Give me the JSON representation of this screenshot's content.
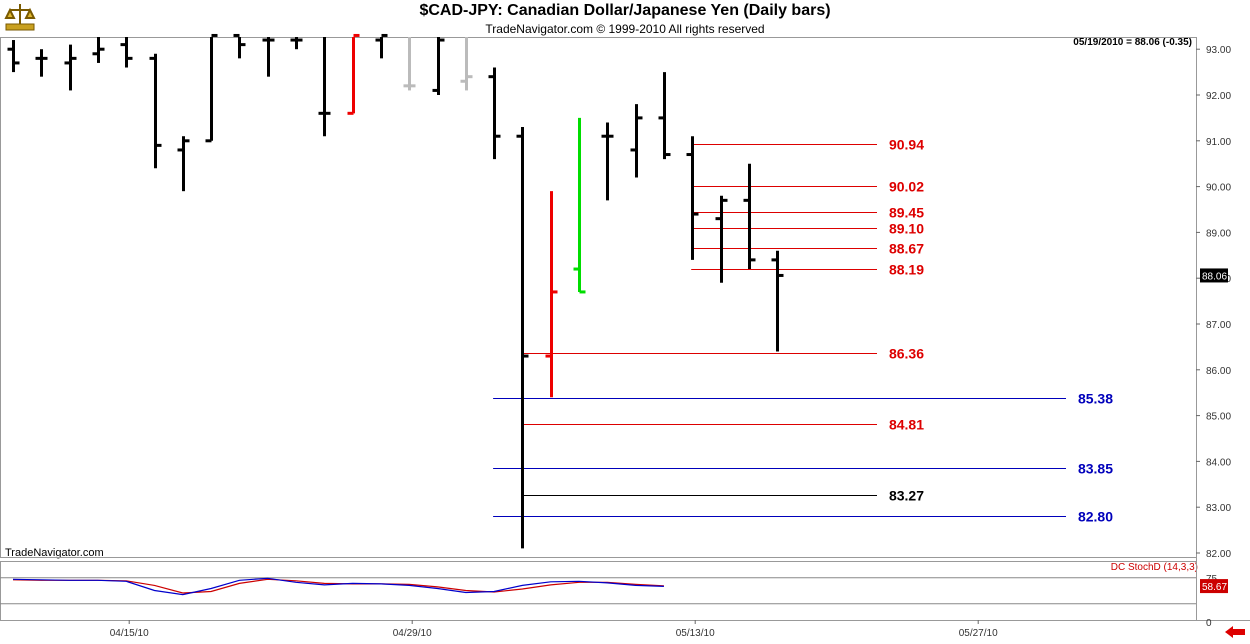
{
  "header": {
    "title": "$CAD-JPY:  Canadian Dollar/Japanese Yen  (Daily bars)",
    "subtitle": "TradeNavigator.com © 1999-2010 All rights reserved",
    "last_value": "05/19/2010 = 88.06 (-0.35)",
    "watermark": "TradeNavigator.com"
  },
  "colors": {
    "bar_default": "#000000",
    "bar_red": "#ee0000",
    "bar_gray": "#bbbbbb",
    "bar_green": "#00dd00",
    "level_red": "#dd0000",
    "level_blue": "#0000bb",
    "level_black": "#000000",
    "stoch_k": "#0000cc",
    "stoch_d": "#cc0000"
  },
  "chart_data": {
    "type": "ohlc",
    "y_axis": {
      "ylim": [
        82.0,
        93.3
      ],
      "ticks": [
        "93.00",
        "92.00",
        "91.00",
        "90.00",
        "89.00",
        "88.00",
        "87.00",
        "86.00",
        "85.00",
        "84.00",
        "83.00",
        "82.00"
      ],
      "current_label": "88.06"
    },
    "x_axis": {
      "ticks": [
        {
          "label": "04/15/10",
          "bar_index": 4
        },
        {
          "label": "04/29/10",
          "bar_index": 14
        },
        {
          "label": "05/13/10",
          "bar_index": 24
        },
        {
          "label": "05/27/10",
          "bar_index": 34
        }
      ]
    },
    "bars": [
      {
        "o": 93.0,
        "h": 93.2,
        "l": 92.5,
        "c": 92.7,
        "color": "black"
      },
      {
        "o": 92.8,
        "h": 93.0,
        "l": 92.4,
        "c": 92.8,
        "color": "black"
      },
      {
        "o": 92.7,
        "h": 93.1,
        "l": 92.1,
        "c": 92.8,
        "color": "black"
      },
      {
        "o": 92.9,
        "h": 93.3,
        "l": 92.7,
        "c": 93.0,
        "color": "black"
      },
      {
        "o": 93.1,
        "h": 93.3,
        "l": 92.6,
        "c": 92.8,
        "color": "black"
      },
      {
        "o": 92.8,
        "h": 92.9,
        "l": 90.4,
        "c": 90.9,
        "color": "black"
      },
      {
        "o": 90.8,
        "h": 91.1,
        "l": 89.9,
        "c": 91.0,
        "color": "black"
      },
      {
        "o": 91.0,
        "h": 93.3,
        "l": 91.0,
        "c": 93.3,
        "color": "black"
      },
      {
        "o": 93.3,
        "h": 93.3,
        "l": 92.8,
        "c": 93.1,
        "color": "black"
      },
      {
        "o": 93.2,
        "h": 93.3,
        "l": 92.4,
        "c": 93.2,
        "color": "black"
      },
      {
        "o": 93.2,
        "h": 93.3,
        "l": 93.0,
        "c": 93.2,
        "color": "black"
      },
      {
        "o": 91.6,
        "h": 93.3,
        "l": 91.1,
        "c": 91.6,
        "color": "black"
      },
      {
        "o": 91.6,
        "h": 93.3,
        "l": 91.6,
        "c": 93.3,
        "color": "red"
      },
      {
        "o": 93.2,
        "h": 93.3,
        "l": 92.8,
        "c": 93.3,
        "color": "black"
      },
      {
        "o": 92.2,
        "h": 93.3,
        "l": 92.1,
        "c": 92.2,
        "color": "gray"
      },
      {
        "o": 92.1,
        "h": 93.3,
        "l": 92.0,
        "c": 93.2,
        "color": "black"
      },
      {
        "o": 92.3,
        "h": 93.3,
        "l": 92.1,
        "c": 92.4,
        "color": "gray"
      },
      {
        "o": 92.4,
        "h": 92.6,
        "l": 90.6,
        "c": 91.1,
        "color": "black"
      },
      {
        "o": 91.1,
        "h": 91.3,
        "l": 82.1,
        "c": 86.3,
        "color": "black"
      },
      {
        "o": 86.3,
        "h": 89.9,
        "l": 85.4,
        "c": 87.7,
        "color": "red"
      },
      {
        "o": 88.2,
        "h": 91.5,
        "l": 87.7,
        "c": 87.7,
        "color": "green"
      },
      {
        "o": 91.1,
        "h": 91.4,
        "l": 89.7,
        "c": 91.1,
        "color": "black"
      },
      {
        "o": 90.8,
        "h": 91.8,
        "l": 90.2,
        "c": 91.5,
        "color": "black"
      },
      {
        "o": 91.5,
        "h": 92.5,
        "l": 90.6,
        "c": 90.7,
        "color": "black"
      },
      {
        "o": 90.7,
        "h": 91.1,
        "l": 88.4,
        "c": 89.4,
        "color": "black"
      },
      {
        "o": 89.3,
        "h": 89.8,
        "l": 87.9,
        "c": 89.7,
        "color": "black"
      },
      {
        "o": 89.7,
        "h": 90.5,
        "l": 88.2,
        "c": 88.4,
        "color": "black"
      },
      {
        "o": 88.4,
        "h": 88.6,
        "l": 86.4,
        "c": 88.06,
        "color": "black"
      }
    ],
    "levels": [
      {
        "label": "90.94",
        "value": 90.94,
        "color": "red",
        "from_bar": 24
      },
      {
        "label": "90.02",
        "value": 90.02,
        "color": "red",
        "from_bar": 24
      },
      {
        "label": "89.45",
        "value": 89.45,
        "color": "red",
        "from_bar": 24
      },
      {
        "label": "89.10",
        "value": 89.1,
        "color": "red",
        "from_bar": 24
      },
      {
        "label": "88.67",
        "value": 88.67,
        "color": "red",
        "from_bar": 24
      },
      {
        "label": "88.19",
        "value": 88.19,
        "color": "red",
        "from_bar": 24
      },
      {
        "label": "86.36",
        "value": 86.36,
        "color": "red",
        "from_bar": 18
      },
      {
        "label": "85.38",
        "value": 85.38,
        "color": "blue",
        "from_bar": 17
      },
      {
        "label": "84.81",
        "value": 84.81,
        "color": "red",
        "from_bar": 18
      },
      {
        "label": "83.85",
        "value": 83.85,
        "color": "blue",
        "from_bar": 17
      },
      {
        "label": "83.27",
        "value": 83.27,
        "color": "black",
        "from_bar": 18
      },
      {
        "label": "82.80",
        "value": 82.8,
        "color": "blue",
        "from_bar": 17
      }
    ],
    "oscillator": {
      "name": "DC  StochD (14,3,3)",
      "ylim": [
        0,
        100
      ],
      "ticks": [
        "75",
        "0"
      ],
      "current_label": "58.67",
      "k": [
        72,
        71,
        70,
        70,
        68,
        50,
        42,
        54,
        70,
        74,
        66,
        61,
        64,
        63,
        60,
        54,
        46,
        48,
        60,
        67,
        68,
        65,
        60,
        58
      ],
      "d": [
        71,
        70,
        70,
        70,
        69,
        60,
        45,
        48,
        64,
        72,
        69,
        64,
        63,
        63,
        62,
        57,
        50,
        47,
        53,
        61,
        66,
        66,
        62,
        59
      ]
    }
  }
}
